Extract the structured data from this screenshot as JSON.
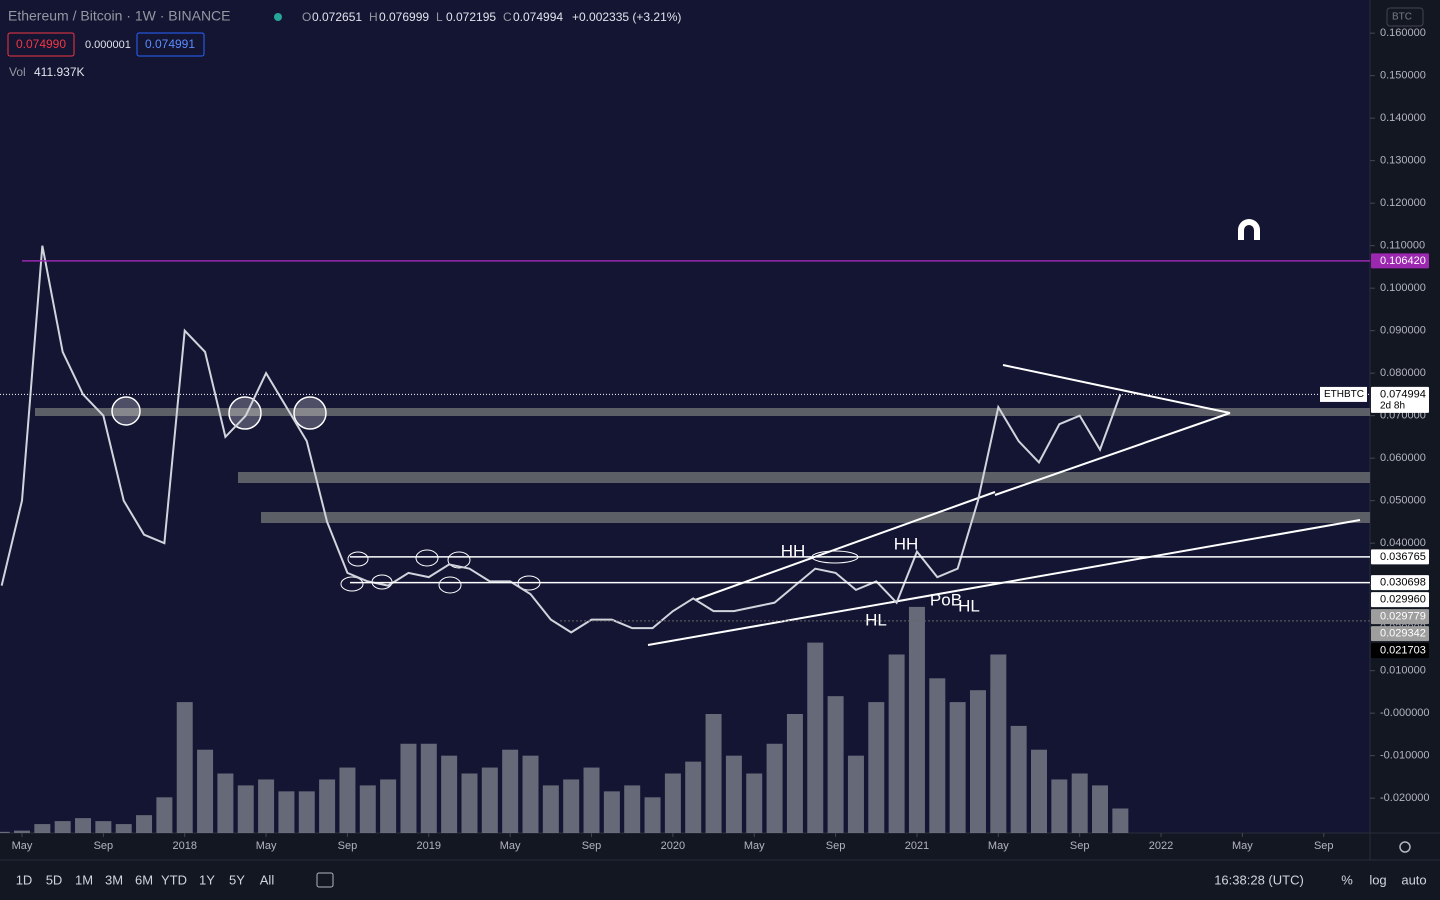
{
  "header": {
    "symbol": "Ethereum / Bitcoin · 1W · BINANCE",
    "ohlc": [
      {
        "key": "O",
        "value": "0.072651"
      },
      {
        "key": "H",
        "value": "0.076999"
      },
      {
        "key": "L",
        "value": "0.072195"
      },
      {
        "key": "C",
        "value": "0.074994"
      }
    ],
    "change": "+0.002335 (+3.21%)",
    "sell": "0.074990",
    "spread": "0.000001",
    "buy": "0.074991",
    "vol_label": "Vol",
    "vol_value": "411.937K",
    "currency": "BTC"
  },
  "toolbar": {
    "ranges": [
      "1D",
      "5D",
      "1M",
      "3M",
      "6M",
      "YTD",
      "1Y",
      "5Y",
      "All"
    ],
    "clock": "16:38:28 (UTC)",
    "options": [
      "%",
      "log",
      "auto"
    ]
  },
  "chart_data": {
    "type": "line",
    "x": [
      "2017-04",
      "2017-05",
      "2017-06",
      "2017-07",
      "2017-08",
      "2017-09",
      "2017-10",
      "2017-11",
      "2017-12",
      "2018-01",
      "2018-02",
      "2018-03",
      "2018-04",
      "2018-05",
      "2018-06",
      "2018-07",
      "2018-08",
      "2018-09",
      "2018-10",
      "2018-11",
      "2018-12",
      "2019-01",
      "2019-02",
      "2019-03",
      "2019-04",
      "2019-05",
      "2019-06",
      "2019-07",
      "2019-08",
      "2019-09",
      "2019-10",
      "2019-11",
      "2019-12",
      "2020-01",
      "2020-02",
      "2020-03",
      "2020-04",
      "2020-05",
      "2020-06",
      "2020-07",
      "2020-08",
      "2020-09",
      "2020-10",
      "2020-11",
      "2020-12",
      "2021-01",
      "2021-02",
      "2021-03",
      "2021-04",
      "2021-05",
      "2021-06",
      "2021-07",
      "2021-08",
      "2021-09",
      "2021-10",
      "2021-11"
    ],
    "series": [
      {
        "color": "#d1d4dc",
        "values": [
          0.03,
          0.05,
          0.11,
          0.085,
          0.075,
          0.07,
          0.05,
          0.042,
          0.04,
          0.09,
          0.085,
          0.065,
          0.07,
          0.08,
          0.072,
          0.064,
          0.045,
          0.033,
          0.031,
          0.03,
          0.033,
          0.032,
          0.035,
          0.034,
          0.031,
          0.031,
          0.028,
          0.022,
          0.019,
          0.022,
          0.022,
          0.02,
          0.02,
          0.024,
          0.027,
          0.024,
          0.024,
          0.025,
          0.026,
          0.03,
          0.034,
          0.033,
          0.029,
          0.031,
          0.026,
          0.038,
          0.032,
          0.034,
          0.05,
          0.072,
          0.064,
          0.059,
          0.068,
          0.07,
          0.062,
          0.075
        ]
      },
      {
        "type": "bar",
        "axis": "y2",
        "color": "#8a8d96",
        "values": [
          20,
          40,
          150,
          200,
          250,
          200,
          150,
          300,
          600,
          2200,
          1400,
          1000,
          800,
          900,
          700,
          700,
          900,
          1100,
          800,
          900,
          1500,
          1500,
          1300,
          1000,
          1100,
          1400,
          1300,
          800,
          900,
          1100,
          700,
          800,
          600,
          1000,
          1200,
          2000,
          1300,
          1000,
          1500,
          2000,
          3200,
          2300,
          1300,
          2200,
          3000,
          3800,
          2600,
          2200,
          2400,
          3000,
          1800,
          1400,
          900,
          1000,
          800,
          411.937
        ]
      }
    ],
    "ylim": [
      -0.0282,
      0.1678
    ],
    "y2lim": [
      0,
      14000
    ],
    "yticks": [
      {
        "value": 0.16,
        "label": "0.160000"
      },
      {
        "value": 0.15,
        "label": "0.150000"
      },
      {
        "value": 0.14,
        "label": "0.140000"
      },
      {
        "value": 0.13,
        "label": "0.130000"
      },
      {
        "value": 0.12,
        "label": "0.120000"
      },
      {
        "value": 0.11,
        "label": "0.110000"
      },
      {
        "value": 0.1,
        "label": "0.100000"
      },
      {
        "value": 0.09,
        "label": "0.090000"
      },
      {
        "value": 0.08,
        "label": "0.080000"
      },
      {
        "value": 0.07,
        "label": "0.070000"
      },
      {
        "value": 0.06,
        "label": "0.060000"
      },
      {
        "value": 0.05,
        "label": "0.050000"
      },
      {
        "value": 0.04,
        "label": "0.040000"
      },
      {
        "value": 0.03,
        "label": "0.030000"
      },
      {
        "value": 0.02,
        "label": "0.020000"
      },
      {
        "value": 0.01,
        "label": "0.010000"
      },
      {
        "value": 0,
        "label": "-0.000000"
      },
      {
        "value": -0.01,
        "label": "-0.010000"
      },
      {
        "value": -0.02,
        "label": "-0.020000"
      }
    ],
    "xticks": [
      {
        "value": "2017-05",
        "label": "May"
      },
      {
        "value": "2017-09",
        "label": "Sep"
      },
      {
        "value": "2018-01",
        "label": "2018"
      },
      {
        "value": "2018-05",
        "label": "May"
      },
      {
        "value": "2018-09",
        "label": "Sep"
      },
      {
        "value": "2019-01",
        "label": "2019"
      },
      {
        "value": "2019-05",
        "label": "May"
      },
      {
        "value": "2019-09",
        "label": "Sep"
      },
      {
        "value": "2020-01",
        "label": "2020"
      },
      {
        "value": "2020-05",
        "label": "May"
      },
      {
        "value": "2020-09",
        "label": "Sep"
      },
      {
        "value": "2021-01",
        "label": "2021"
      },
      {
        "value": "2021-05",
        "label": "May"
      },
      {
        "value": "2021-09",
        "label": "Sep"
      },
      {
        "value": "2022-01",
        "label": "2022"
      },
      {
        "value": "2022-05",
        "label": "May"
      },
      {
        "value": "2022-09",
        "label": "Sep"
      }
    ],
    "price_labels": [
      {
        "value": 0.10642,
        "label": "0.106420",
        "color": "#9c27b0"
      },
      {
        "value": 0.074994,
        "label": "0.074994",
        "tag": "ETHBTC",
        "countdown": "2d 8h",
        "color": "#ffffff"
      },
      {
        "value": 0.036765,
        "label": "0.036765",
        "color": "#ffffff"
      },
      {
        "value": 0.030698,
        "label": "0.030698",
        "color": "#ffffff"
      },
      {
        "value": 0.02996,
        "label": "0.029960",
        "color": "#ffffff"
      },
      {
        "value": 0.029779,
        "label": "0.029779",
        "color": "#9e9e9e"
      },
      {
        "value": 0.029342,
        "label": "0.029342",
        "color": "#9e9e9e"
      },
      {
        "value": 0.021703,
        "label": "0.021703",
        "color": "#000000"
      }
    ],
    "annotations": [
      "HH",
      "HH",
      "HL",
      "PoB",
      "HL"
    ]
  }
}
